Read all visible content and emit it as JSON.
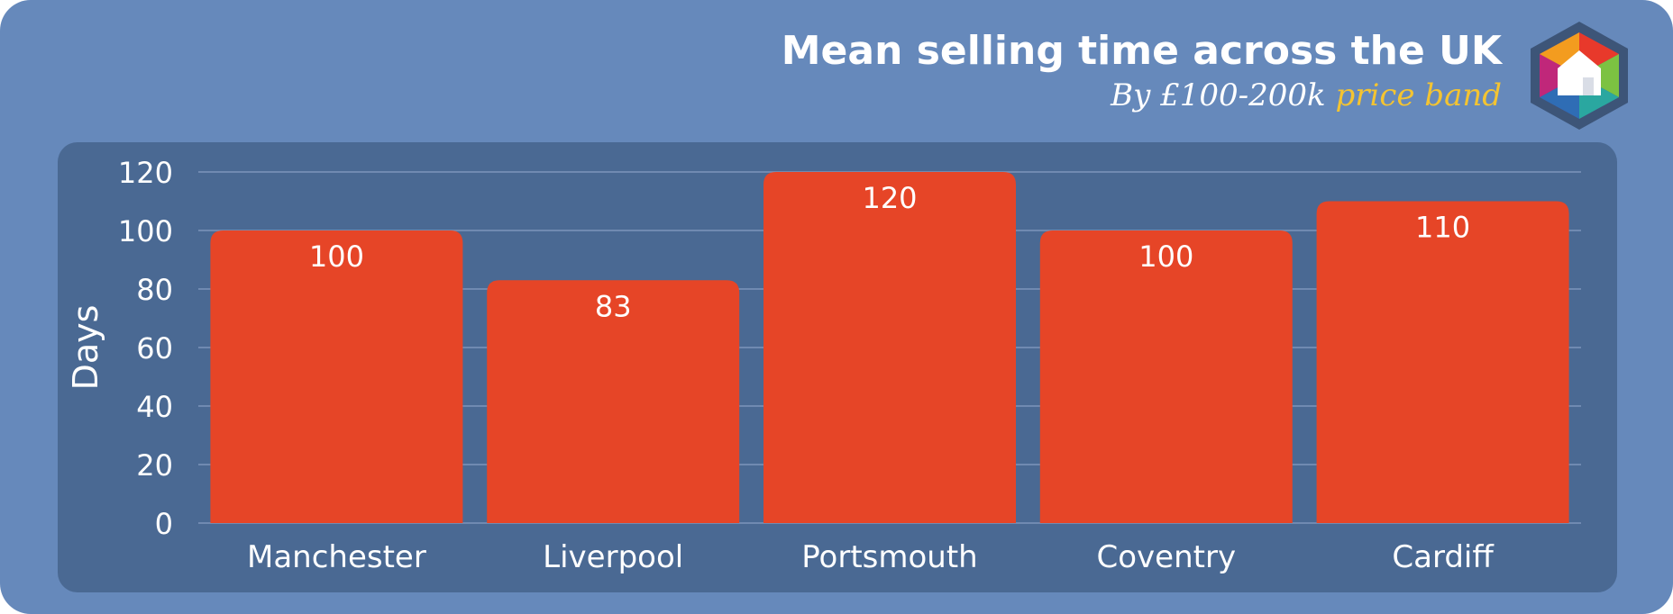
{
  "header": {
    "title": "Mean selling time across the UK",
    "subtitle_part1": "By £100-200k",
    "subtitle_part2": "price band"
  },
  "logo": {
    "icon": "house-hexagon-logo-icon"
  },
  "colors": {
    "background": "#6689bb",
    "panel": "#4a6993",
    "bar": "#e64527",
    "text": "#ffffff",
    "accent": "#f4c431",
    "grid": "#7d96bb"
  },
  "chart_data": {
    "type": "bar",
    "categories": [
      "Manchester",
      "Liverpool",
      "Portsmouth",
      "Coventry",
      "Cardiff"
    ],
    "values": [
      100,
      83,
      120,
      100,
      110
    ],
    "data_labels": [
      "100",
      "83",
      "120",
      "100",
      "110"
    ],
    "ylabel": "Days",
    "ylim": [
      0,
      120
    ],
    "yticks": [
      0,
      20,
      40,
      60,
      80,
      100,
      120
    ],
    "grid": true,
    "legend": "none"
  }
}
